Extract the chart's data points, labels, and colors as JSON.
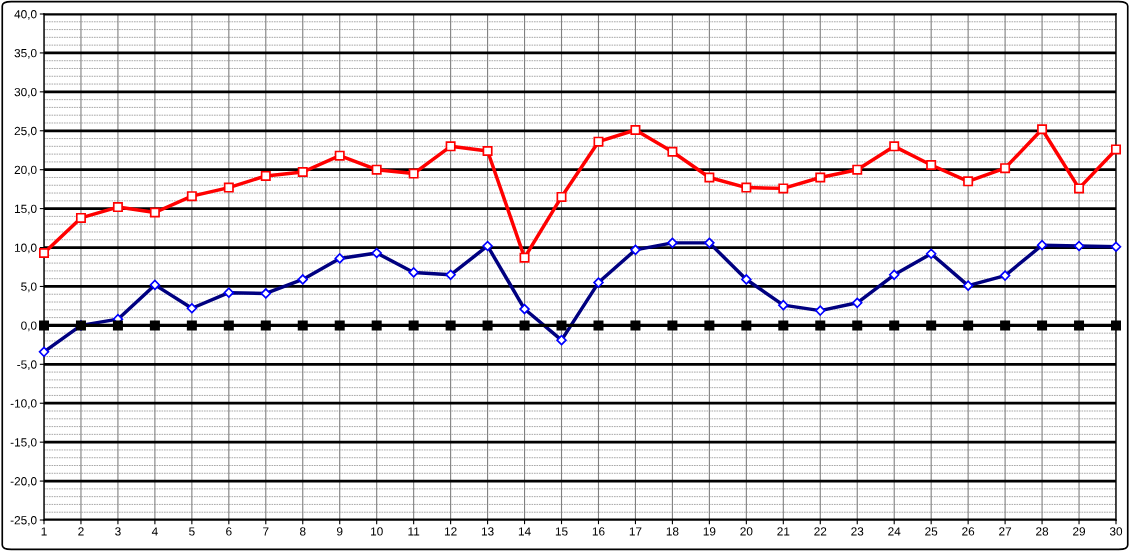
{
  "chart_data": {
    "type": "line",
    "x": [
      1,
      2,
      3,
      4,
      5,
      6,
      7,
      8,
      9,
      10,
      11,
      12,
      13,
      14,
      15,
      16,
      17,
      18,
      19,
      20,
      21,
      22,
      23,
      24,
      25,
      26,
      27,
      28,
      29,
      30
    ],
    "series": [
      {
        "color": "#ff0000",
        "marker": "square",
        "values": [
          9.3,
          13.8,
          15.2,
          14.5,
          16.6,
          17.7,
          19.2,
          19.7,
          21.8,
          20.0,
          19.5,
          23.0,
          22.4,
          8.7,
          16.5,
          23.6,
          25.1,
          22.3,
          19.0,
          17.7,
          17.6,
          19.0,
          20.0,
          23.0,
          20.6,
          18.5,
          20.2,
          25.2,
          17.6,
          22.6
        ]
      },
      {
        "color": "#000080",
        "marker": "diamond",
        "values": [
          -3.4,
          0.0,
          0.8,
          5.2,
          2.2,
          4.2,
          4.1,
          5.9,
          8.6,
          9.3,
          6.8,
          6.5,
          10.2,
          2.1,
          -1.9,
          5.5,
          9.7,
          10.6,
          10.6,
          5.9,
          2.6,
          1.9,
          2.9,
          6.5,
          9.2,
          5.1,
          6.4,
          10.3,
          10.2,
          10.1
        ]
      },
      {
        "color": "#000000",
        "marker": "square",
        "values": [
          0,
          0,
          0,
          0,
          0,
          0,
          0,
          0,
          0,
          0,
          0,
          0,
          0,
          0,
          0,
          0,
          0,
          0,
          0,
          0,
          0,
          0,
          0,
          0,
          0,
          0,
          0,
          0,
          0,
          0
        ]
      }
    ],
    "xlim": [
      1,
      30
    ],
    "xticks": [
      1,
      2,
      3,
      4,
      5,
      6,
      7,
      8,
      9,
      10,
      11,
      12,
      13,
      14,
      15,
      16,
      17,
      18,
      19,
      20,
      21,
      22,
      23,
      24,
      25,
      26,
      27,
      28,
      29,
      30
    ],
    "ylim": [
      -25,
      40
    ],
    "yticks": [
      {
        "value": -25,
        "label": "-25,0"
      },
      {
        "value": -20,
        "label": "-20,0"
      },
      {
        "value": -15,
        "label": "-15,0"
      },
      {
        "value": -10,
        "label": "-10,0"
      },
      {
        "value": -5,
        "label": "-5,0"
      },
      {
        "value": 0,
        "label": "0,0"
      },
      {
        "value": 5,
        "label": "5,0"
      },
      {
        "value": 10,
        "label": "10,0"
      },
      {
        "value": 15,
        "label": "15,0"
      },
      {
        "value": 20,
        "label": "20,0"
      },
      {
        "value": 25,
        "label": "25,0"
      },
      {
        "value": 30,
        "label": "30,0"
      },
      {
        "value": 35,
        "label": "35,0"
      },
      {
        "value": 40,
        "label": "40,0"
      }
    ],
    "grid": true,
    "line_style": "solid"
  }
}
